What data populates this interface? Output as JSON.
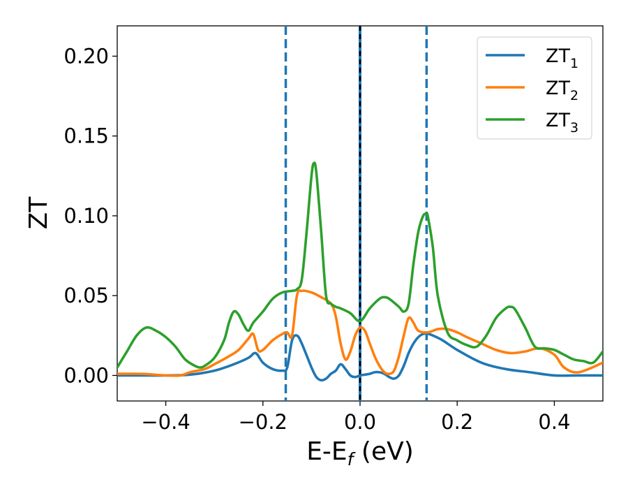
{
  "chart_data": {
    "type": "line",
    "xlabel": {
      "base": "E-E",
      "sub": "f",
      "suffix": " (eV)"
    },
    "ylabel": "ZT",
    "xlim": [
      -0.5,
      0.5
    ],
    "ylim": [
      -0.016,
      0.219
    ],
    "xticks": [
      -0.4,
      -0.2,
      0.0,
      0.2,
      0.4
    ],
    "xtick_labels": [
      "−0.4",
      "−0.2",
      "0.0",
      "0.2",
      "0.4"
    ],
    "yticks": [
      0.0,
      0.05,
      0.1,
      0.15,
      0.2
    ],
    "ytick_labels": [
      "0.00",
      "0.05",
      "0.10",
      "0.15",
      "0.20"
    ],
    "grid": false,
    "legend_position": "top-right",
    "vlines": [
      {
        "x": -0.153,
        "style": "dashed",
        "color": "#1f77b4"
      },
      {
        "x": 0.0,
        "style": "solid",
        "color": "#1f77b4"
      },
      {
        "x": 0.0,
        "style": "dashed",
        "color": "#000000"
      },
      {
        "x": 0.137,
        "style": "dashed",
        "color": "#1f77b4"
      }
    ],
    "series": [
      {
        "name": {
          "base": "ZT",
          "sub": "1"
        },
        "color": "#1f77b4",
        "x": [
          -0.5,
          -0.45,
          -0.4,
          -0.35,
          -0.3,
          -0.26,
          -0.23,
          -0.215,
          -0.2,
          -0.18,
          -0.16,
          -0.15,
          -0.14,
          -0.13,
          -0.12,
          -0.1,
          -0.09,
          -0.08,
          -0.07,
          -0.06,
          -0.05,
          -0.04,
          -0.03,
          -0.02,
          -0.01,
          0.0,
          0.01,
          0.02,
          0.03,
          0.04,
          0.05,
          0.06,
          0.07,
          0.08,
          0.09,
          0.1,
          0.11,
          0.12,
          0.13,
          0.14,
          0.15,
          0.17,
          0.2,
          0.25,
          0.3,
          0.35,
          0.4,
          0.45,
          0.5
        ],
        "y": [
          0.0,
          0.0,
          0.0,
          0.0005,
          0.003,
          0.007,
          0.011,
          0.014,
          0.008,
          0.004,
          0.003,
          0.005,
          0.022,
          0.025,
          0.02,
          0.005,
          -0.001,
          -0.003,
          -0.002,
          0.001,
          0.003,
          0.007,
          0.004,
          0.0,
          -0.001,
          0.0,
          0.0005,
          0.001,
          0.002,
          0.002,
          0.001,
          -0.001,
          -0.002,
          0.0,
          0.006,
          0.014,
          0.02,
          0.024,
          0.026,
          0.026,
          0.025,
          0.022,
          0.016,
          0.008,
          0.004,
          0.002,
          0.0,
          0.0,
          0.0
        ]
      },
      {
        "name": {
          "base": "ZT",
          "sub": "2"
        },
        "color": "#ff7f0e",
        "x": [
          -0.5,
          -0.45,
          -0.4,
          -0.37,
          -0.35,
          -0.32,
          -0.3,
          -0.27,
          -0.25,
          -0.23,
          -0.22,
          -0.21,
          -0.2,
          -0.18,
          -0.16,
          -0.15,
          -0.14,
          -0.13,
          -0.12,
          -0.1,
          -0.08,
          -0.06,
          -0.05,
          -0.04,
          -0.03,
          -0.02,
          -0.01,
          0.0,
          0.01,
          0.02,
          0.03,
          0.04,
          0.05,
          0.06,
          0.07,
          0.08,
          0.09,
          0.1,
          0.11,
          0.12,
          0.14,
          0.16,
          0.18,
          0.2,
          0.22,
          0.25,
          0.28,
          0.31,
          0.34,
          0.37,
          0.4,
          0.42,
          0.45,
          0.5
        ],
        "y": [
          0.001,
          0.001,
          0.0,
          0.0,
          0.002,
          0.004,
          0.007,
          0.012,
          0.016,
          0.023,
          0.026,
          0.016,
          0.016,
          0.022,
          0.026,
          0.027,
          0.025,
          0.05,
          0.053,
          0.052,
          0.049,
          0.045,
          0.037,
          0.02,
          0.01,
          0.015,
          0.025,
          0.03,
          0.028,
          0.02,
          0.012,
          0.006,
          0.002,
          0.001,
          0.003,
          0.012,
          0.025,
          0.036,
          0.033,
          0.028,
          0.027,
          0.029,
          0.029,
          0.027,
          0.024,
          0.02,
          0.016,
          0.014,
          0.015,
          0.017,
          0.013,
          0.005,
          0.002,
          0.008
        ]
      },
      {
        "name": {
          "base": "ZT",
          "sub": "3"
        },
        "color": "#2ca02c",
        "x": [
          -0.5,
          -0.48,
          -0.46,
          -0.44,
          -0.42,
          -0.4,
          -0.38,
          -0.36,
          -0.34,
          -0.33,
          -0.32,
          -0.3,
          -0.28,
          -0.27,
          -0.26,
          -0.25,
          -0.24,
          -0.23,
          -0.22,
          -0.2,
          -0.18,
          -0.16,
          -0.14,
          -0.13,
          -0.12,
          -0.11,
          -0.1,
          -0.095,
          -0.09,
          -0.08,
          -0.07,
          -0.06,
          -0.05,
          -0.04,
          -0.02,
          0.0,
          0.02,
          0.04,
          0.05,
          0.06,
          0.08,
          0.09,
          0.1,
          0.11,
          0.12,
          0.13,
          0.137,
          0.14,
          0.15,
          0.16,
          0.18,
          0.2,
          0.22,
          0.24,
          0.26,
          0.28,
          0.3,
          0.31,
          0.32,
          0.34,
          0.36,
          0.38,
          0.4,
          0.42,
          0.44,
          0.46,
          0.48,
          0.5
        ],
        "y": [
          0.005,
          0.015,
          0.025,
          0.03,
          0.028,
          0.024,
          0.018,
          0.01,
          0.006,
          0.005,
          0.006,
          0.011,
          0.022,
          0.033,
          0.04,
          0.038,
          0.032,
          0.028,
          0.033,
          0.04,
          0.048,
          0.052,
          0.053,
          0.054,
          0.06,
          0.09,
          0.125,
          0.133,
          0.127,
          0.09,
          0.05,
          0.045,
          0.043,
          0.042,
          0.039,
          0.034,
          0.042,
          0.048,
          0.049,
          0.048,
          0.043,
          0.04,
          0.045,
          0.07,
          0.09,
          0.1,
          0.101,
          0.099,
          0.08,
          0.05,
          0.027,
          0.022,
          0.019,
          0.018,
          0.025,
          0.036,
          0.042,
          0.043,
          0.041,
          0.03,
          0.018,
          0.017,
          0.016,
          0.013,
          0.01,
          0.009,
          0.008,
          0.015
        ]
      }
    ]
  }
}
